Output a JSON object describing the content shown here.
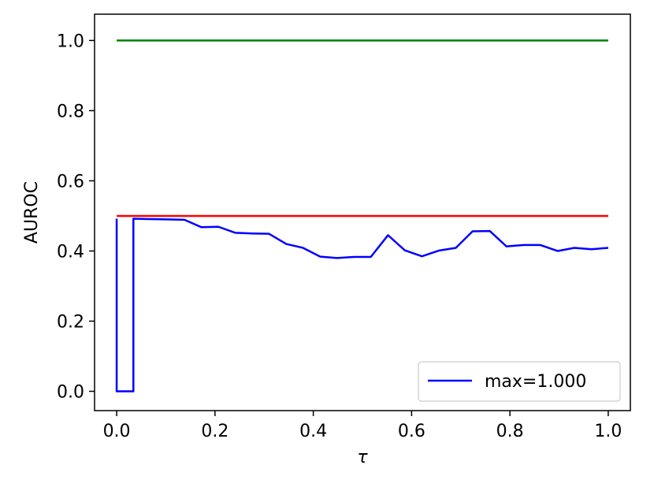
{
  "chart_data": {
    "type": "line",
    "title": "",
    "xlabel": "τ",
    "ylabel": "AUROC",
    "xlim": [
      -0.045,
      1.045
    ],
    "ylim": [
      -0.055,
      1.075
    ],
    "x_ticks": [
      0.0,
      0.2,
      0.4,
      0.6,
      0.8,
      1.0
    ],
    "x_tick_labels": [
      "0.0",
      "0.2",
      "0.4",
      "0.6",
      "0.8",
      "1.0"
    ],
    "y_ticks": [
      0.0,
      0.2,
      0.4,
      0.6,
      0.8,
      1.0
    ],
    "y_tick_labels": [
      "0.0",
      "0.2",
      "0.4",
      "0.6",
      "0.8",
      "1.0"
    ],
    "grid": false,
    "legend": {
      "placement": "lower-right",
      "entries": [
        "max=1.000"
      ]
    },
    "series": [
      {
        "name": "max=1.000",
        "color": "#0000ff",
        "x": [
          0.0,
          0.0,
          0.034,
          0.034,
          0.069,
          0.103,
          0.138,
          0.172,
          0.207,
          0.241,
          0.276,
          0.31,
          0.345,
          0.379,
          0.414,
          0.448,
          0.483,
          0.517,
          0.552,
          0.586,
          0.621,
          0.655,
          0.69,
          0.724,
          0.759,
          0.793,
          0.828,
          0.862,
          0.897,
          0.931,
          0.966,
          1.0
        ],
        "y": [
          0.492,
          0.0,
          0.0,
          0.492,
          0.491,
          0.49,
          0.489,
          0.468,
          0.469,
          0.452,
          0.45,
          0.449,
          0.42,
          0.409,
          0.384,
          0.38,
          0.383,
          0.383,
          0.445,
          0.402,
          0.385,
          0.401,
          0.409,
          0.456,
          0.457,
          0.413,
          0.417,
          0.417,
          0.4,
          0.409,
          0.405,
          0.409
        ]
      },
      {
        "color": "#008000",
        "x": [
          0.0,
          1.0
        ],
        "y": [
          1.0,
          1.0
        ]
      },
      {
        "color": "#ff0000",
        "x": [
          0.0,
          1.0
        ],
        "y": [
          0.5,
          0.5
        ]
      }
    ]
  }
}
